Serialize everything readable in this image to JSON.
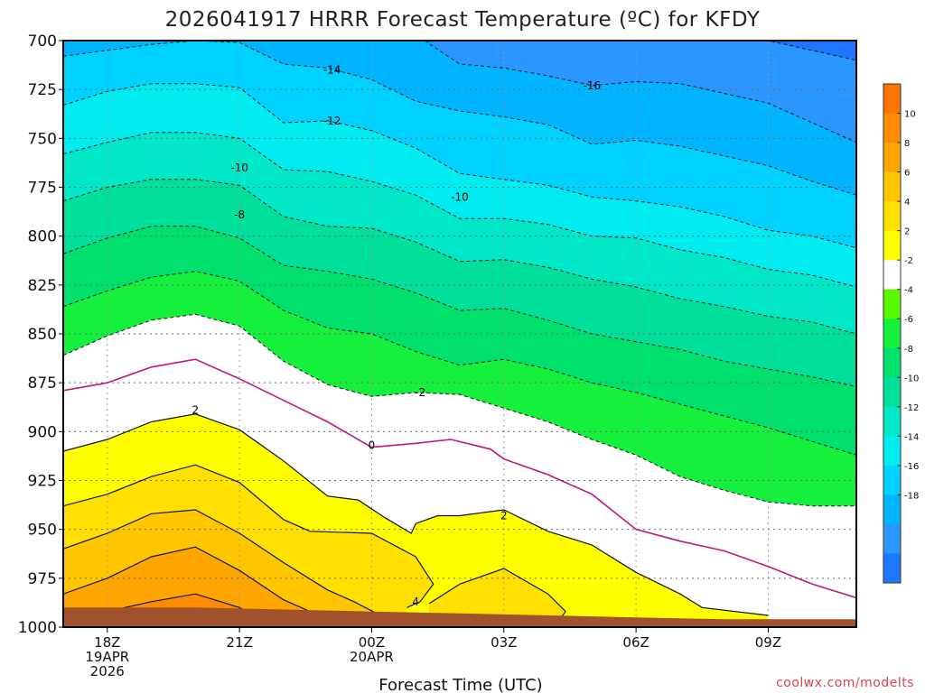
{
  "chart_data": {
    "type": "heatmap",
    "title": "2026041917 HRRR Forecast Temperature (ºC) for KFDY",
    "xlabel": "Forecast Time (UTC)",
    "ylabel": "",
    "credit": "coolwx.com/modelts",
    "x_ticks": [
      {
        "hour": 0,
        "lines": [
          "18Z",
          "19APR",
          "2026"
        ]
      },
      {
        "hour": 3,
        "lines": [
          "21Z"
        ]
      },
      {
        "hour": 6,
        "lines": [
          "00Z",
          "20APR"
        ]
      },
      {
        "hour": 9,
        "lines": [
          "03Z"
        ]
      },
      {
        "hour": 12,
        "lines": [
          "06Z"
        ]
      },
      {
        "hour": 15,
        "lines": [
          "09Z"
        ]
      }
    ],
    "xlim": [
      -1,
      17
    ],
    "ylim": [
      1000,
      700
    ],
    "y_ticks": [
      700,
      725,
      750,
      775,
      800,
      825,
      850,
      875,
      900,
      925,
      950,
      975,
      1000
    ],
    "contour_levels": [
      -18,
      -16,
      -14,
      -12,
      -10,
      -8,
      -6,
      -4,
      -2,
      2,
      4,
      6,
      8,
      10
    ],
    "colors": [
      "#1e78ff",
      "#2a96ff",
      "#00b4ff",
      "#00d2ff",
      "#00ecf0",
      "#00e8c8",
      "#00e09a",
      "#00e06c",
      "#14f03c",
      "#5afa00",
      "#ffffff",
      "#ffff00",
      "#ffe000",
      "#ffc600",
      "#ffa500",
      "#ff8c00",
      "#ff7300"
    ],
    "colorbar_labels": [
      "10",
      "8",
      "6",
      "4",
      "2",
      "-2",
      "-4",
      "-6",
      "-8",
      "-10",
      "-12",
      "-14",
      "-16",
      "-18"
    ],
    "terrain_color": "#a0522d",
    "contour_labels": [
      {
        "text": "-14",
        "hour": 5.1,
        "p": 715
      },
      {
        "text": "-12",
        "hour": 5.1,
        "p": 741
      },
      {
        "text": "-10",
        "hour": 3.0,
        "p": 765
      },
      {
        "text": "-8",
        "hour": 3.0,
        "p": 789
      },
      {
        "text": "-16",
        "hour": 11.0,
        "p": 723
      },
      {
        "text": "-10",
        "hour": 8.0,
        "p": 780
      },
      {
        "text": "-2",
        "hour": 7.1,
        "p": 880
      },
      {
        "text": "0",
        "hour": 6.0,
        "p": 907
      },
      {
        "text": "2",
        "hour": 2.0,
        "p": 889
      },
      {
        "text": "2",
        "hour": 9.0,
        "p": 943
      },
      {
        "text": "4",
        "hour": 7.0,
        "p": 987
      }
    ],
    "dashed_contours": [
      {
        "value": -18,
        "points": [
          [
            0,
            700
          ],
          [
            1,
            700
          ],
          [
            2,
            700
          ],
          [
            3,
            700
          ],
          [
            4,
            700
          ],
          [
            5,
            700
          ],
          [
            6,
            700
          ],
          [
            7,
            700
          ],
          [
            9,
            700
          ],
          [
            11,
            700
          ],
          [
            13,
            700
          ],
          [
            15,
            700
          ],
          [
            17,
            710
          ]
        ]
      },
      {
        "value": -16,
        "points": [
          [
            7.2,
            700
          ],
          [
            8,
            712
          ],
          [
            9,
            714
          ],
          [
            10,
            718
          ],
          [
            11,
            723
          ],
          [
            12,
            721
          ],
          [
            13,
            722
          ],
          [
            14,
            727
          ],
          [
            15,
            732
          ],
          [
            16,
            742
          ],
          [
            17,
            752
          ]
        ]
      },
      {
        "value": -14,
        "points": [
          [
            -1,
            708
          ],
          [
            0,
            705
          ],
          [
            1,
            702
          ],
          [
            2,
            700
          ],
          [
            3,
            701
          ],
          [
            4,
            712
          ],
          [
            5,
            714
          ],
          [
            6,
            720
          ],
          [
            7,
            731
          ],
          [
            8,
            736
          ],
          [
            9,
            739
          ],
          [
            10,
            743
          ],
          [
            11,
            753
          ],
          [
            12,
            751
          ],
          [
            13,
            754
          ],
          [
            14,
            759
          ],
          [
            15,
            764
          ],
          [
            16,
            772
          ],
          [
            17,
            779
          ]
        ]
      },
      {
        "value": -12,
        "points": [
          [
            -1,
            733
          ],
          [
            0,
            726
          ],
          [
            1,
            722
          ],
          [
            2,
            722
          ],
          [
            3,
            724
          ],
          [
            4,
            742
          ],
          [
            5,
            741
          ],
          [
            6,
            746
          ],
          [
            7,
            755
          ],
          [
            8,
            768
          ],
          [
            9,
            771
          ],
          [
            10,
            774
          ],
          [
            11,
            780
          ],
          [
            12,
            782
          ],
          [
            13,
            785
          ],
          [
            14,
            790
          ],
          [
            15,
            797
          ],
          [
            16,
            800
          ],
          [
            17,
            806
          ]
        ]
      },
      {
        "value": -10,
        "points": [
          [
            -1,
            758
          ],
          [
            0,
            752
          ],
          [
            1,
            747
          ],
          [
            2,
            747
          ],
          [
            3,
            750
          ],
          [
            4,
            766
          ],
          [
            5,
            767
          ],
          [
            6,
            772
          ],
          [
            7,
            779
          ],
          [
            8,
            791
          ],
          [
            9,
            791
          ],
          [
            10,
            794
          ],
          [
            11,
            800
          ],
          [
            12,
            801
          ],
          [
            13,
            807
          ],
          [
            14,
            811
          ],
          [
            15,
            817
          ],
          [
            16,
            820
          ],
          [
            17,
            826
          ]
        ]
      },
      {
        "value": -8,
        "points": [
          [
            -1,
            782
          ],
          [
            0,
            775
          ],
          [
            1,
            771
          ],
          [
            2,
            771
          ],
          [
            3,
            774
          ],
          [
            4,
            790
          ],
          [
            5,
            795
          ],
          [
            6,
            796
          ],
          [
            7,
            803
          ],
          [
            8,
            813
          ],
          [
            9,
            812
          ],
          [
            10,
            816
          ],
          [
            11,
            822
          ],
          [
            12,
            826
          ],
          [
            13,
            832
          ],
          [
            14,
            836
          ],
          [
            15,
            841
          ],
          [
            16,
            844
          ],
          [
            17,
            850
          ]
        ]
      },
      {
        "value": -6,
        "points": [
          [
            -1,
            809
          ],
          [
            0,
            801
          ],
          [
            1,
            795
          ],
          [
            2,
            795
          ],
          [
            3,
            801
          ],
          [
            4,
            815
          ],
          [
            5,
            818
          ],
          [
            6,
            822
          ],
          [
            7,
            829
          ],
          [
            8,
            838
          ],
          [
            9,
            837
          ],
          [
            10,
            843
          ],
          [
            11,
            850
          ],
          [
            12,
            854
          ],
          [
            13,
            858
          ],
          [
            14,
            864
          ],
          [
            15,
            868
          ],
          [
            16,
            872
          ],
          [
            17,
            877
          ]
        ]
      },
      {
        "value": -4,
        "points": [
          [
            -1,
            836
          ],
          [
            0,
            828
          ],
          [
            1,
            821
          ],
          [
            2,
            818
          ],
          [
            3,
            823
          ],
          [
            4,
            838
          ],
          [
            5,
            847
          ],
          [
            6,
            850
          ],
          [
            7,
            859
          ],
          [
            8,
            866
          ],
          [
            9,
            863
          ],
          [
            10,
            868
          ],
          [
            11,
            875
          ],
          [
            12,
            880
          ],
          [
            13,
            886
          ],
          [
            14,
            892
          ],
          [
            15,
            898
          ],
          [
            16,
            905
          ],
          [
            17,
            912
          ]
        ]
      },
      {
        "value": -2,
        "points": [
          [
            -1,
            861
          ],
          [
            0,
            851
          ],
          [
            1,
            843
          ],
          [
            2,
            840
          ],
          [
            3,
            846
          ],
          [
            4,
            864
          ],
          [
            5,
            876
          ],
          [
            6,
            882
          ],
          [
            7,
            880
          ],
          [
            8,
            881
          ],
          [
            9,
            888
          ],
          [
            10,
            895
          ],
          [
            11,
            904
          ],
          [
            12,
            912
          ],
          [
            13,
            923
          ],
          [
            14,
            930
          ],
          [
            15,
            936
          ],
          [
            16,
            938
          ],
          [
            17,
            938
          ]
        ]
      }
    ],
    "solid_contours": [
      {
        "value": 0,
        "color": "#c0187a",
        "points": [
          [
            -1,
            879
          ],
          [
            0,
            875
          ],
          [
            1,
            867
          ],
          [
            2,
            863
          ],
          [
            3,
            873
          ],
          [
            4,
            884
          ],
          [
            5,
            895
          ],
          [
            6,
            908
          ],
          [
            7,
            906
          ],
          [
            7.8,
            904
          ],
          [
            8.7,
            909
          ],
          [
            9,
            914
          ],
          [
            10,
            922
          ],
          [
            11,
            932
          ],
          [
            12,
            950
          ],
          [
            13,
            956
          ],
          [
            14,
            961
          ],
          [
            15,
            969
          ],
          [
            16,
            978
          ],
          [
            17,
            985
          ]
        ]
      },
      {
        "value": 2,
        "color": "#111111",
        "points": [
          [
            -1,
            910
          ],
          [
            0,
            904
          ],
          [
            1,
            895
          ],
          [
            2,
            891
          ],
          [
            3,
            899
          ],
          [
            4,
            915
          ],
          [
            5,
            933
          ],
          [
            5.7,
            935
          ],
          [
            6.3,
            944
          ],
          [
            6.9,
            952
          ],
          [
            7.0,
            947
          ],
          [
            7.5,
            943
          ],
          [
            8,
            943
          ],
          [
            9,
            940
          ],
          [
            10,
            951
          ],
          [
            11,
            958
          ],
          [
            12,
            972
          ],
          [
            13,
            983
          ],
          [
            13.5,
            990
          ],
          [
            15,
            994
          ]
        ]
      },
      {
        "value": 4,
        "color": "#111111",
        "points": [
          [
            -1,
            938
          ],
          [
            0,
            932
          ],
          [
            1,
            923
          ],
          [
            2,
            917
          ],
          [
            3,
            926
          ],
          [
            4,
            945
          ],
          [
            4.6,
            951
          ],
          [
            6,
            952
          ],
          [
            7,
            964
          ],
          [
            7.4,
            978
          ],
          [
            7.1,
            987
          ],
          [
            6.8,
            990
          ]
        ]
      },
      {
        "value": 4,
        "color": "#111111",
        "points": [
          [
            7.3,
            988
          ],
          [
            8,
            978
          ],
          [
            9,
            970
          ],
          [
            10,
            983
          ],
          [
            10.4,
            992
          ],
          [
            10.3,
            995
          ]
        ]
      },
      {
        "value": 6,
        "color": "#111111",
        "points": [
          [
            -1,
            960
          ],
          [
            0,
            952
          ],
          [
            1,
            942
          ],
          [
            2,
            940
          ],
          [
            3,
            952
          ],
          [
            4,
            967
          ],
          [
            5,
            981
          ],
          [
            5.6,
            987
          ],
          [
            6.2,
            994
          ]
        ]
      },
      {
        "value": 8,
        "color": "#111111",
        "points": [
          [
            -1,
            983
          ],
          [
            0,
            975
          ],
          [
            1,
            964
          ],
          [
            2,
            959
          ],
          [
            3,
            971
          ],
          [
            4,
            986
          ],
          [
            4.8,
            994
          ]
        ]
      },
      {
        "value": 10,
        "color": "#111111",
        "points": [
          [
            0,
            992
          ],
          [
            1,
            987
          ],
          [
            2,
            983
          ],
          [
            3,
            990
          ],
          [
            3.3,
            994
          ]
        ]
      }
    ],
    "terrain_top": [
      [
        -1,
        990
      ],
      [
        2,
        990
      ],
      [
        4,
        991
      ],
      [
        6,
        992
      ],
      [
        8,
        993
      ],
      [
        10,
        994
      ],
      [
        12,
        995
      ],
      [
        14,
        996
      ],
      [
        17,
        996
      ]
    ]
  }
}
